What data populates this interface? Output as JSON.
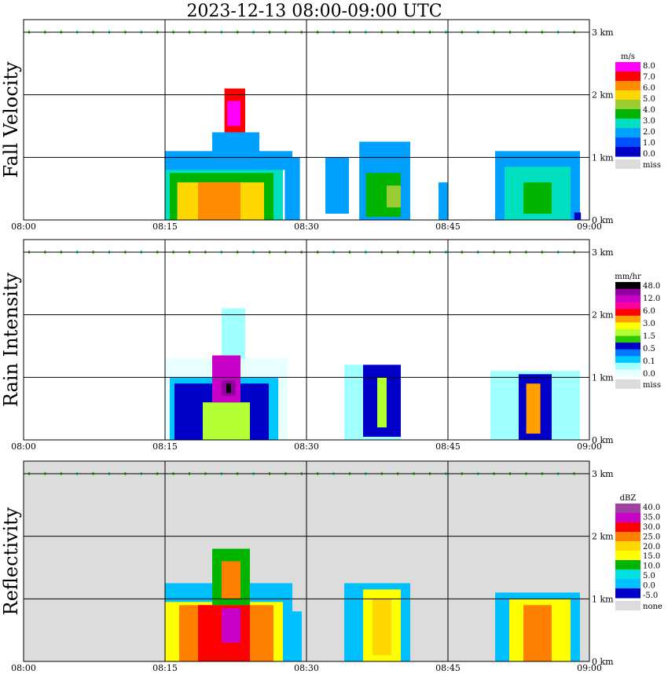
{
  "title": "2023-12-13   08:00-09:00 UTC",
  "time_ticks": [
    "08:00",
    "08:15",
    "08:30",
    "08:45",
    "09:00"
  ],
  "height_ticks": [
    "0 km",
    "1 km",
    "2 km",
    "3 km"
  ],
  "chart_data": [
    {
      "type": "heatmap",
      "title": "Fall Velocity",
      "unit": "m/s",
      "x_range": [
        "08:00",
        "09:00"
      ],
      "ylim": [
        0,
        3.2
      ],
      "legend_labels": [
        "8.0",
        "7.0",
        "6.0",
        "5.0",
        "4.0",
        "3.0",
        "2.0",
        "1.0",
        "0.0",
        "miss"
      ],
      "legend_colors": [
        "#ff00ff",
        "#ff0000",
        "#ff8c00",
        "#ffd700",
        "#9acd32",
        "#00b400",
        "#00e0c0",
        "#00a0ff",
        "#0050ff",
        "#0000c8"
      ],
      "miss_color": "#dcdcdc",
      "background": "#ffffff",
      "cells": [
        {
          "t0": 15,
          "t1": 27.5,
          "h0": 0,
          "h1": 0.9,
          "level": 6
        },
        {
          "t0": 15.5,
          "t1": 26.5,
          "h0": 0,
          "h1": 0.75,
          "level": 5
        },
        {
          "t0": 16.3,
          "t1": 25.5,
          "h0": 0,
          "h1": 0.6,
          "level": 3
        },
        {
          "t0": 18.5,
          "t1": 23,
          "h0": 0,
          "h1": 0.6,
          "level": 2
        },
        {
          "t0": 15,
          "t1": 28.5,
          "h0": 0.8,
          "h1": 1.1,
          "level": 7
        },
        {
          "t0": 20,
          "t1": 25,
          "h0": 0.9,
          "h1": 1.4,
          "level": 7
        },
        {
          "t0": 21.3,
          "t1": 23.5,
          "h0": 1.4,
          "h1": 2.1,
          "level": 1
        },
        {
          "t0": 21.6,
          "t1": 23,
          "h0": 1.5,
          "h1": 1.9,
          "level": 0
        },
        {
          "t0": 27.7,
          "t1": 29.3,
          "h0": 0,
          "h1": 1.0,
          "level": 7
        },
        {
          "t0": 32,
          "t1": 34.5,
          "h0": 0.1,
          "h1": 1.0,
          "level": 7
        },
        {
          "t0": 35.6,
          "t1": 41,
          "h0": 0,
          "h1": 1.25,
          "level": 7
        },
        {
          "t0": 36.3,
          "t1": 40,
          "h0": 0.05,
          "h1": 0.75,
          "level": 5
        },
        {
          "t0": 38.5,
          "t1": 40,
          "h0": 0.2,
          "h1": 0.55,
          "level": 4
        },
        {
          "t0": 44,
          "t1": 45,
          "h0": 0,
          "h1": 0.6,
          "level": 7
        },
        {
          "t0": 50,
          "t1": 59,
          "h0": 0,
          "h1": 1.1,
          "level": 7
        },
        {
          "t0": 51,
          "t1": 58,
          "h0": 0,
          "h1": 0.85,
          "level": 6
        },
        {
          "t0": 53,
          "t1": 56,
          "h0": 0.1,
          "h1": 0.6,
          "level": 5
        },
        {
          "t0": 58.4,
          "t1": 59.1,
          "h0": 0,
          "h1": 0.12,
          "level": 9
        }
      ]
    },
    {
      "type": "heatmap",
      "title": "Rain Intensity",
      "unit": "mm/hr",
      "x_range": [
        "08:00",
        "09:00"
      ],
      "ylim": [
        0,
        3.2
      ],
      "legend_labels": [
        "48.0",
        "12.0",
        "6.0",
        "3.0",
        "1.5",
        "0.5",
        "0.1",
        "0.0",
        "miss"
      ],
      "legend_colors": [
        "#000000",
        "#9400a0",
        "#c800c8",
        "#ff00a0",
        "#ff0000",
        "#ffa000",
        "#ffff00",
        "#b4ff32",
        "#32c800",
        "#0000c8",
        "#0078ff",
        "#00c8ff",
        "#a0ffff",
        "#e8ffff"
      ],
      "miss_color": "#dcdcdc",
      "background": "#ffffff",
      "cells": [
        {
          "t0": 15,
          "t1": 28,
          "h0": 0,
          "h1": 1.3,
          "level": 13
        },
        {
          "t0": 15.5,
          "t1": 27,
          "h0": 0,
          "h1": 1.0,
          "level": 11
        },
        {
          "t0": 16,
          "t1": 26,
          "h0": 0,
          "h1": 0.9,
          "level": 9
        },
        {
          "t0": 21,
          "t1": 23.5,
          "h0": 1.3,
          "h1": 2.1,
          "level": 12
        },
        {
          "t0": 19,
          "t1": 24,
          "h0": 0,
          "h1": 0.6,
          "level": 7
        },
        {
          "t0": 20,
          "t1": 23,
          "h0": 0.6,
          "h1": 1.35,
          "level": 2
        },
        {
          "t0": 21,
          "t1": 22.5,
          "h0": 0.7,
          "h1": 0.95,
          "level": 1
        },
        {
          "t0": 21.5,
          "t1": 22,
          "h0": 0.75,
          "h1": 0.9,
          "level": 0
        },
        {
          "t0": 34,
          "t1": 40,
          "h0": 0,
          "h1": 1.2,
          "level": 12
        },
        {
          "t0": 36,
          "t1": 40,
          "h0": 0.05,
          "h1": 1.2,
          "level": 9
        },
        {
          "t0": 37.5,
          "t1": 38.5,
          "h0": 0.2,
          "h1": 1.0,
          "level": 7
        },
        {
          "t0": 49.5,
          "t1": 59,
          "h0": 0,
          "h1": 1.1,
          "level": 12
        },
        {
          "t0": 52.5,
          "t1": 56,
          "h0": 0,
          "h1": 1.05,
          "level": 9
        },
        {
          "t0": 53.3,
          "t1": 54.8,
          "h0": 0.1,
          "h1": 0.9,
          "level": 5
        }
      ]
    },
    {
      "type": "heatmap",
      "title": "Reflectivity",
      "unit": "dBZ",
      "x_range": [
        "08:00",
        "09:00"
      ],
      "ylim": [
        0,
        3.2
      ],
      "legend_labels": [
        "40.0",
        "35.0",
        "30.0",
        "25.0",
        "20.0",
        "15.0",
        "10.0",
        "5.0",
        "0.0",
        "-5.0",
        "none"
      ],
      "legend_colors": [
        "#a040a0",
        "#c800c8",
        "#ff0000",
        "#ff8000",
        "#ffd700",
        "#ffff00",
        "#00b400",
        "#00e0e0",
        "#00c0ff",
        "#0000c8"
      ],
      "miss_color": "#dcdcdc",
      "background": "#dcdcdc",
      "cells": [
        {
          "t0": 15,
          "t1": 28.5,
          "h0": 0,
          "h1": 1.25,
          "level": 8
        },
        {
          "t0": 15,
          "t1": 27.5,
          "h0": 0,
          "h1": 0.95,
          "level": 5
        },
        {
          "t0": 16.5,
          "t1": 26.5,
          "h0": 0,
          "h1": 0.9,
          "level": 3
        },
        {
          "t0": 18.5,
          "t1": 24,
          "h0": 0,
          "h1": 0.9,
          "level": 2
        },
        {
          "t0": 21,
          "t1": 23,
          "h0": 0.3,
          "h1": 0.85,
          "level": 1
        },
        {
          "t0": 20,
          "t1": 24,
          "h0": 0.9,
          "h1": 1.8,
          "level": 6
        },
        {
          "t0": 21,
          "t1": 23,
          "h0": 1.0,
          "h1": 1.6,
          "level": 3
        },
        {
          "t0": 28,
          "t1": 29.5,
          "h0": 0,
          "h1": 0.8,
          "level": 8
        },
        {
          "t0": 34,
          "t1": 41,
          "h0": 0,
          "h1": 1.25,
          "level": 8
        },
        {
          "t0": 36,
          "t1": 40,
          "h0": 0,
          "h1": 1.15,
          "level": 5
        },
        {
          "t0": 37,
          "t1": 39,
          "h0": 0.1,
          "h1": 1.0,
          "level": 4
        },
        {
          "t0": 50,
          "t1": 59,
          "h0": 0,
          "h1": 1.1,
          "level": 8
        },
        {
          "t0": 51.5,
          "t1": 58,
          "h0": 0,
          "h1": 1.0,
          "level": 5
        },
        {
          "t0": 53,
          "t1": 56,
          "h0": 0,
          "h1": 0.9,
          "level": 3
        }
      ]
    }
  ]
}
